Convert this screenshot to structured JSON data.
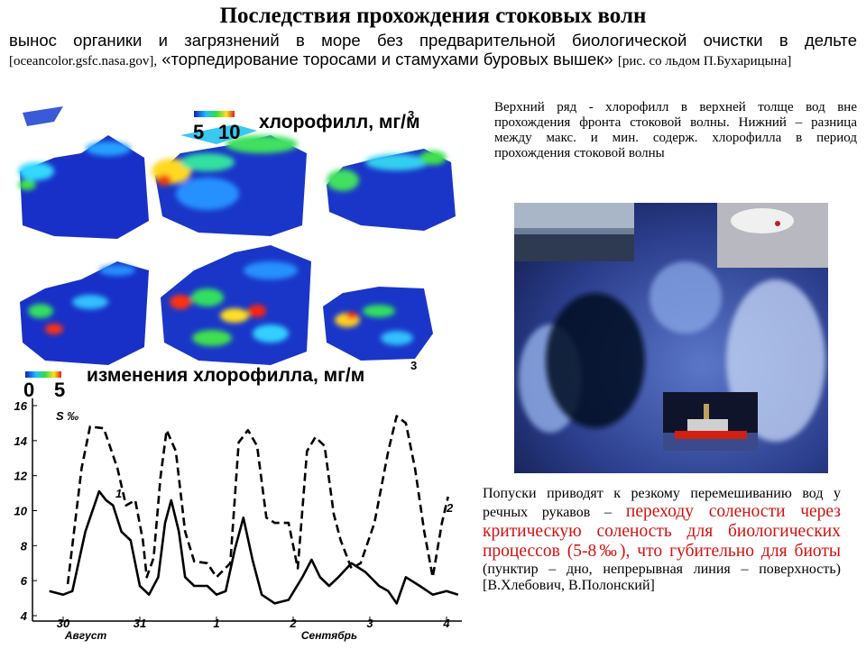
{
  "header": {
    "title": "Последствия прохождения стоковых волн"
  },
  "intro": {
    "text": "вынос органики и загрязнений в море без предварительной биологической очистки в дельте",
    "source1": "[oceancolor.gsfc.nasa.gov],",
    "quote": "«торпедирование торосами и стамухами буровых вышек»",
    "source2": "[рис. со льдом П.Бухарицына]"
  },
  "maps": {
    "top_label": "хлорофилл, мг/м",
    "top_label_sup": "3",
    "top_scale": [
      5,
      10
    ],
    "bottom_label": "изменения хлорофилла, мг/м",
    "bottom_label_sup": "3",
    "bottom_scale": [
      0,
      5
    ]
  },
  "caption": "Верхний ряд - хлорофилл в верхней толще вод вне прохождения фронта стоковой волны. Нижний – разница между макс. и мин. содерж. хлорофилла в период прохождения стоковой волны",
  "conclusion": {
    "text1": "Попуски приводят к резкому перемешиванию вод у речных рукавов –",
    "highlight": "переходу солености через критическую соленость для биологических процессов (5-8‰), что губительно для биоты",
    "text2": "(пунктир – дно, непрерывная линия – поверхность)",
    "authors": "[В.Хлебович, В.Полонский]"
  },
  "chart_data": {
    "type": "line",
    "y_label": "S ‰",
    "x_group_labels": [
      "Август",
      "Сентябрь"
    ],
    "xlim": [
      -0.4,
      5.2
    ],
    "xticks": [
      {
        "value": 0,
        "label": "30"
      },
      {
        "value": 1,
        "label": "31"
      },
      {
        "value": 2,
        "label": "1"
      },
      {
        "value": 3,
        "label": "2"
      },
      {
        "value": 4,
        "label": "3"
      },
      {
        "value": 5,
        "label": "4"
      }
    ],
    "ylim": [
      4,
      16
    ],
    "yticks": [
      4,
      6,
      8,
      10,
      12,
      14,
      16
    ],
    "series": [
      {
        "name": "1",
        "color": "#000000",
        "x": [
          -0.18,
          0,
          0.12,
          0.29,
          0.47,
          0.56,
          0.65,
          0.76,
          0.88,
          1.0,
          1.12,
          1.24,
          1.33,
          1.41,
          1.51,
          1.59,
          1.71,
          1.88,
          2.0,
          2.12,
          2.24,
          2.35,
          2.47,
          2.59,
          2.76,
          2.94,
          3.12,
          3.24,
          3.35,
          3.47,
          3.59,
          3.76,
          3.94,
          4.12,
          4.24,
          4.35,
          4.47,
          4.65,
          4.82,
          5.0,
          5.15
        ],
        "values": [
          5.4,
          5.2,
          5.4,
          8.8,
          11.1,
          10.6,
          10.3,
          8.8,
          8.3,
          5.7,
          5.2,
          6.2,
          9.3,
          10.6,
          8.8,
          6.2,
          5.7,
          5.7,
          5.2,
          5.4,
          7.8,
          9.6,
          7.2,
          5.2,
          4.7,
          4.9,
          6.2,
          7.2,
          6.2,
          5.7,
          6.2,
          7.0,
          6.5,
          5.7,
          5.4,
          4.7,
          6.2,
          5.7,
          5.2,
          5.4,
          5.2
        ]
      },
      {
        "name": "2",
        "color": "#000000",
        "dashed": true,
        "x": [
          0.06,
          0.24,
          0.35,
          0.53,
          0.71,
          0.82,
          0.94,
          1.04,
          1.09,
          1.18,
          1.27,
          1.35,
          1.47,
          1.59,
          1.71,
          1.88,
          2.0,
          2.18,
          2.29,
          2.41,
          2.53,
          2.65,
          2.76,
          2.94,
          3.06,
          3.18,
          3.29,
          3.41,
          3.53,
          3.62,
          3.76,
          3.88,
          4.06,
          4.24,
          4.35,
          4.47,
          4.59,
          4.71,
          4.82,
          4.94,
          5.02
        ],
        "values": [
          5.8,
          12.4,
          14.8,
          14.7,
          12.4,
          10.3,
          10.6,
          8.3,
          6.2,
          7.3,
          11.9,
          14.6,
          13.4,
          8.8,
          7.1,
          7.0,
          6.2,
          7.0,
          13.9,
          14.6,
          13.7,
          9.6,
          9.3,
          9.3,
          6.7,
          13.4,
          14.2,
          13.7,
          9.8,
          8.3,
          6.7,
          7.0,
          9.3,
          13.4,
          15.4,
          15.0,
          12.4,
          8.8,
          6.2,
          9.3,
          10.8
        ]
      }
    ]
  }
}
